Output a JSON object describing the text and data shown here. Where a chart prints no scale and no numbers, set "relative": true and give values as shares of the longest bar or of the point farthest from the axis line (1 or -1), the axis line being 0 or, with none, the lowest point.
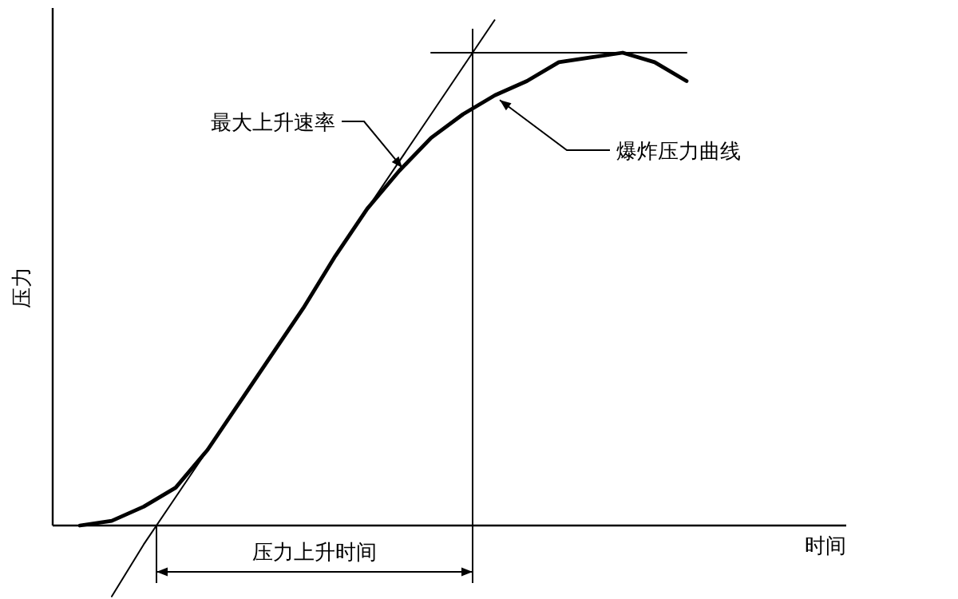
{
  "chart_data": {
    "type": "line",
    "relative": true,
    "xlabel": "时间",
    "ylabel": "压力",
    "legend": false,
    "categories": [
      null,
      null,
      null,
      null,
      null,
      null,
      null,
      null,
      null,
      null,
      null,
      null,
      null,
      null,
      null,
      null,
      null,
      null,
      null,
      null
    ],
    "series": [
      {
        "color": "#000000",
        "values": [
          0,
          0.01,
          0.04,
          0.08,
          0.16,
          0.26,
          0.36,
          0.46,
          0.57,
          0.67,
          0.75,
          0.82,
          0.87,
          0.91,
          0.94,
          0.98,
          0.99,
          1.0,
          0.98,
          0.94
        ]
      },
      {
        "color": "#000000",
        "values": [
          null,
          -0.15,
          -0.04,
          0.06,
          0.16,
          0.26,
          0.36,
          0.46,
          0.57,
          0.67,
          0.77,
          0.87,
          0.97,
          null,
          null,
          null,
          null,
          null,
          null,
          null
        ]
      },
      {
        "color": "#000000",
        "values": [
          null,
          null,
          null,
          null,
          null,
          null,
          null,
          null,
          null,
          null,
          null,
          1.0,
          1.0,
          1.0,
          1.0,
          1.0,
          1.0,
          1.0,
          1.0,
          1.0
        ]
      }
    ],
    "annotations": [
      "最大上升速率",
      "爆炸压力曲线",
      "压力上升时间"
    ]
  }
}
